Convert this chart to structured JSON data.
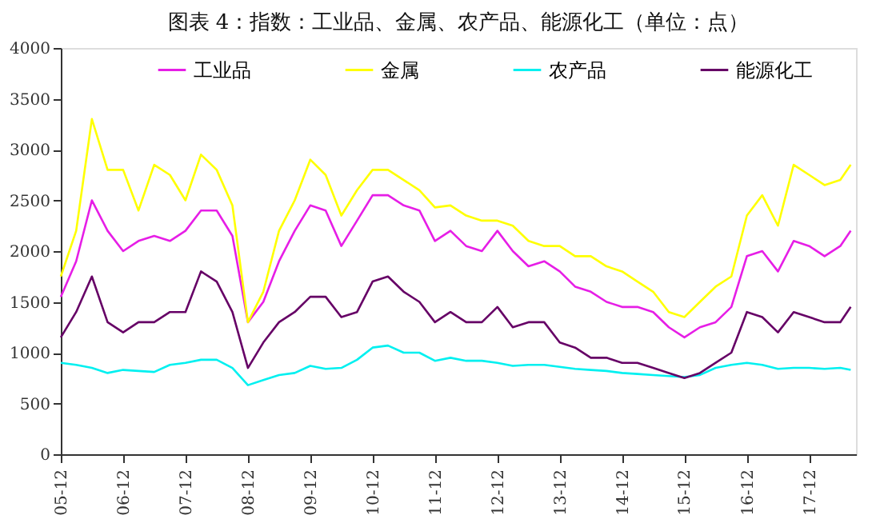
{
  "chart_data": {
    "type": "line",
    "title": "图表 4：指数：工业品、金属、农产品、能源化工（单位：点）",
    "x": [
      "2005-12",
      "2006-03",
      "2006-06",
      "2006-09",
      "2006-12",
      "2007-03",
      "2007-06",
      "2007-09",
      "2007-12",
      "2008-03",
      "2008-06",
      "2008-09",
      "2008-12",
      "2009-03",
      "2009-06",
      "2009-09",
      "2009-12",
      "2010-03",
      "2010-06",
      "2010-09",
      "2010-12",
      "2011-03",
      "2011-06",
      "2011-09",
      "2011-12",
      "2012-03",
      "2012-06",
      "2012-09",
      "2012-12",
      "2013-03",
      "2013-06",
      "2013-09",
      "2013-12",
      "2014-03",
      "2014-06",
      "2014-09",
      "2014-12",
      "2015-03",
      "2015-06",
      "2015-09",
      "2015-12",
      "2016-03",
      "2016-06",
      "2016-09",
      "2016-12",
      "2017-03",
      "2017-06",
      "2017-09",
      "2017-12",
      "2018-03",
      "2018-06",
      "2018-08"
    ],
    "series": [
      {
        "name": "工业品",
        "color": "#e61ee6",
        "values": [
          1550,
          1900,
          2500,
          2200,
          2000,
          2100,
          2150,
          2100,
          2200,
          2400,
          2400,
          2150,
          1300,
          1500,
          1900,
          2200,
          2450,
          2400,
          2050,
          2300,
          2550,
          2550,
          2450,
          2400,
          2100,
          2200,
          2050,
          2000,
          2200,
          2000,
          1850,
          1900,
          1800,
          1650,
          1600,
          1500,
          1450,
          1450,
          1400,
          1250,
          1150,
          1250,
          1300,
          1450,
          1950,
          2000,
          1800,
          2100,
          2050,
          1950,
          2050,
          2200
        ]
      },
      {
        "name": "金属",
        "color": "#ffff00",
        "values": [
          1750,
          2200,
          3300,
          2800,
          2800,
          2400,
          2850,
          2750,
          2500,
          2950,
          2800,
          2450,
          1300,
          1600,
          2200,
          2500,
          2900,
          2750,
          2350,
          2600,
          2800,
          2800,
          2700,
          2600,
          2430,
          2450,
          2350,
          2300,
          2300,
          2250,
          2100,
          2050,
          2050,
          1950,
          1950,
          1850,
          1800,
          1700,
          1600,
          1400,
          1350,
          1500,
          1650,
          1750,
          2350,
          2550,
          2250,
          2850,
          2750,
          2650,
          2700,
          2850
        ]
      },
      {
        "name": "农产品",
        "color": "#00f0f0",
        "values": [
          900,
          880,
          850,
          800,
          830,
          820,
          810,
          880,
          900,
          930,
          930,
          850,
          680,
          730,
          780,
          800,
          870,
          840,
          850,
          930,
          1050,
          1070,
          1000,
          1000,
          920,
          950,
          920,
          920,
          900,
          870,
          880,
          880,
          860,
          840,
          830,
          820,
          800,
          790,
          780,
          770,
          760,
          780,
          850,
          880,
          900,
          880,
          840,
          850,
          850,
          840,
          850,
          830
        ]
      },
      {
        "name": "能源化工",
        "color": "#660066",
        "values": [
          1150,
          1400,
          1750,
          1300,
          1200,
          1300,
          1300,
          1400,
          1400,
          1800,
          1700,
          1400,
          850,
          1100,
          1300,
          1400,
          1550,
          1550,
          1350,
          1400,
          1700,
          1750,
          1600,
          1500,
          1300,
          1400,
          1300,
          1300,
          1450,
          1250,
          1300,
          1300,
          1100,
          1050,
          950,
          950,
          900,
          900,
          850,
          800,
          750,
          800,
          900,
          1000,
          1400,
          1350,
          1200,
          1400,
          1350,
          1300,
          1300,
          1450
        ]
      }
    ],
    "xlim": [
      "2005-12",
      "2018-09"
    ],
    "xticks": [
      {
        "value": "2005-12",
        "label": "05-12"
      },
      {
        "value": "2006-12",
        "label": "06-12"
      },
      {
        "value": "2007-12",
        "label": "07-12"
      },
      {
        "value": "2008-12",
        "label": "08-12"
      },
      {
        "value": "2009-12",
        "label": "09-12"
      },
      {
        "value": "2010-12",
        "label": "10-12"
      },
      {
        "value": "2011-12",
        "label": "11-12"
      },
      {
        "value": "2012-12",
        "label": "12-12"
      },
      {
        "value": "2013-12",
        "label": "13-12"
      },
      {
        "value": "2014-12",
        "label": "14-12"
      },
      {
        "value": "2015-12",
        "label": "15-12"
      },
      {
        "value": "2016-12",
        "label": "16-12"
      },
      {
        "value": "2017-12",
        "label": "17-12"
      }
    ],
    "ylim": [
      0,
      4000
    ],
    "yticks": [
      0,
      500,
      1000,
      1500,
      2000,
      2500,
      3000,
      3500,
      4000
    ],
    "grid": false,
    "legend": "top",
    "marker": "none",
    "line_style": "solid"
  }
}
